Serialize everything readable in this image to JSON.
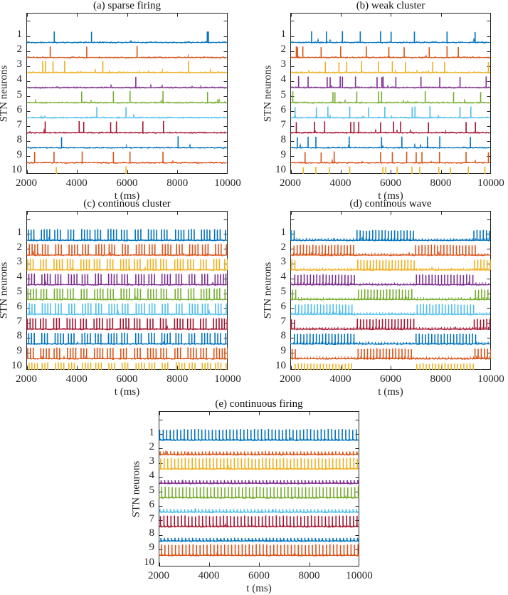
{
  "figure": {
    "background": "#ffffff",
    "axis_color": "#262626",
    "text_color": "#262626",
    "neuron_colors": [
      "#0072BD",
      "#D95319",
      "#EDB120",
      "#7E2F8E",
      "#77AC30",
      "#4DBEEE",
      "#A2142F",
      "#0072BD",
      "#D95319",
      "#EDB120"
    ]
  },
  "chart_data": [
    {
      "id": "a",
      "type": "line",
      "subtype": "spike-raster",
      "title": "(a) sparse firing",
      "xlabel": "t (ms)",
      "ylabel": "STN neurons",
      "xlim": [
        2000,
        10000
      ],
      "xticks": [
        2000,
        4000,
        6000,
        8000,
        10000
      ],
      "ytick_labels": [
        "1",
        "2",
        "3",
        "4",
        "5",
        "6",
        "7",
        "8",
        "9",
        "10"
      ],
      "spike_amp": 0.75,
      "spike_times": [
        [
          3110,
          4590,
          9190,
          9235
        ],
        [
          2950,
          4400,
          6400
        ],
        [
          2650,
          2760,
          3060,
          3520,
          5040,
          8440
        ],
        [
          6350
        ],
        [
          4200,
          5460,
          6120,
          7430,
          9200
        ],
        [
          4800,
          5960
        ],
        [
          2750,
          4100,
          4280,
          5350,
          5580,
          6630,
          7450
        ],
        [
          3400,
          8030
        ],
        [
          2330,
          3100,
          4220,
          5460,
          6120,
          7430
        ],
        [
          3190,
          5960
        ]
      ],
      "minor_spike_times": [
        [],
        [
          8430
        ],
        [
          6490,
          7410
        ],
        [
          8930
        ],
        [],
        [],
        [],
        [
          5980
        ],
        [],
        [
          6700
        ]
      ]
    },
    {
      "id": "b",
      "type": "line",
      "subtype": "spike-raster",
      "title": "(b) weak cluster",
      "xlabel": "t (ms)",
      "ylabel": "STN neurons",
      "xlim": [
        2000,
        10000
      ],
      "xticks": [
        2000,
        4000,
        6000,
        8000,
        10000
      ],
      "ytick_labels": [
        "1",
        "2",
        "3",
        "4",
        "5",
        "6",
        "7",
        "8",
        "9",
        "10"
      ],
      "spike_amp": 0.73,
      "spike_times": [
        [
          2850,
          3440,
          4080,
          4790,
          5600,
          6020,
          6950,
          8250,
          9370
        ],
        [
          2240,
          2290,
          2500,
          3230,
          4010,
          5030,
          5930,
          6540,
          7540,
          8250,
          8700
        ],
        [
          3400,
          3940,
          4250,
          4840,
          5520,
          6070,
          6590,
          7680,
          8150,
          9900
        ],
        [
          2330,
          2710,
          3470,
          3590,
          3990,
          4080,
          4600,
          5460,
          5650,
          5700,
          6210,
          7210,
          7960,
          8770,
          9810
        ],
        [
          2100,
          3700,
          3780,
          4650,
          5520,
          5640,
          7380,
          8510,
          9590
        ],
        [
          2190,
          3040,
          3500,
          4370,
          5120,
          5770,
          6860,
          6970,
          7570,
          8770,
          9200
        ],
        [
          2240,
          2970,
          3370,
          4410,
          4540,
          4730,
          5600,
          6120,
          6400,
          7510,
          9010,
          9380
        ],
        [
          2280,
          2710,
          3020,
          4350,
          5640,
          6450,
          7470,
          7960,
          9180
        ],
        [
          2590,
          3230,
          3750,
          5600,
          6070,
          6640,
          7020,
          7250,
          7950,
          9010,
          9900
        ],
        [
          2520,
          3020,
          3560,
          4370,
          5690,
          5810,
          6260,
          6850,
          7160,
          7920,
          8390,
          9100,
          9760
        ]
      ],
      "minor_spike_times": [
        [],
        [],
        [],
        [],
        [],
        [],
        [
          8200
        ],
        [],
        [],
        []
      ]
    },
    {
      "id": "c",
      "type": "line",
      "subtype": "spike-raster",
      "title": "(c) continous cluster",
      "xlabel": "t (ms)",
      "ylabel": "STN neurons",
      "xlim": [
        2000,
        10000
      ],
      "xticks": [
        2000,
        4000,
        6000,
        8000,
        10000
      ],
      "ytick_labels": [
        "1",
        "2",
        "3",
        "4",
        "5",
        "6",
        "7",
        "8",
        "9",
        "10"
      ],
      "pattern": "burst",
      "spike_amp": 0.74,
      "burst_start_times": [
        2080,
        2600,
        3130,
        3660,
        4200,
        4730,
        5250,
        5780,
        6330,
        6850,
        7370,
        7930,
        8450,
        8960,
        9480,
        9910
      ],
      "intra_burst_interval_ms": 110,
      "spikes_per_burst_cycle": [
        3,
        4,
        3,
        3,
        4,
        3,
        4,
        3,
        3,
        4,
        3,
        4,
        3,
        4,
        3,
        3
      ],
      "neuron_phase_ms": [
        0,
        40,
        -30,
        20,
        -15,
        35,
        -40,
        15,
        -25,
        30
      ]
    },
    {
      "id": "d",
      "type": "line",
      "subtype": "spike-raster",
      "title": "(d) continous wave",
      "xlabel": "t (ms)",
      "ylabel": "STN neurons",
      "xlim": [
        2000,
        10000
      ],
      "xticks": [
        2000,
        4000,
        6000,
        8000,
        10000
      ],
      "ytick_labels": [
        "1",
        "2",
        "3",
        "4",
        "5",
        "6",
        "7",
        "8",
        "9",
        "10"
      ],
      "pattern": "wave",
      "spike_amp": 0.68,
      "spike_interval_ms": 125,
      "group_windows": {
        "a": [
          [
            2020,
            2270
          ],
          [
            4650,
            6940
          ],
          [
            9310,
            10000
          ]
        ],
        "b": [
          [
            2150,
            4560
          ],
          [
            7000,
            9390
          ]
        ]
      },
      "neuron_groups": [
        "a",
        "b",
        "a",
        "b",
        "a",
        "b",
        "a",
        "b",
        "a",
        "b"
      ],
      "neuron_phase_ms": [
        10,
        0,
        40,
        30,
        70,
        60,
        25,
        15,
        55,
        45
      ],
      "subthreshold_amp": 0.13
    },
    {
      "id": "e",
      "type": "line",
      "subtype": "spike-raster",
      "title": "(e) continuous firing",
      "xlabel": "t (ms)",
      "ylabel": "STN neurons",
      "xlim": [
        2000,
        10000
      ],
      "xticks": [
        2000,
        4000,
        6000,
        8000,
        10000
      ],
      "ytick_labels": [
        "1",
        "2",
        "3",
        "4",
        "5",
        "6",
        "7",
        "8",
        "9",
        "10"
      ],
      "pattern": "continuous",
      "window": [
        2040,
        10000
      ],
      "spike_interval_ms": 140,
      "neuron_phase_ms": [
        0,
        20,
        40,
        60,
        80,
        10,
        30,
        50,
        70,
        90
      ],
      "neuron_spike_amp": [
        0.75,
        0.22,
        0.75,
        0.22,
        0.75,
        0.22,
        0.75,
        0.22,
        0.75,
        0.22
      ],
      "subthreshold_amp": 0.08
    }
  ]
}
